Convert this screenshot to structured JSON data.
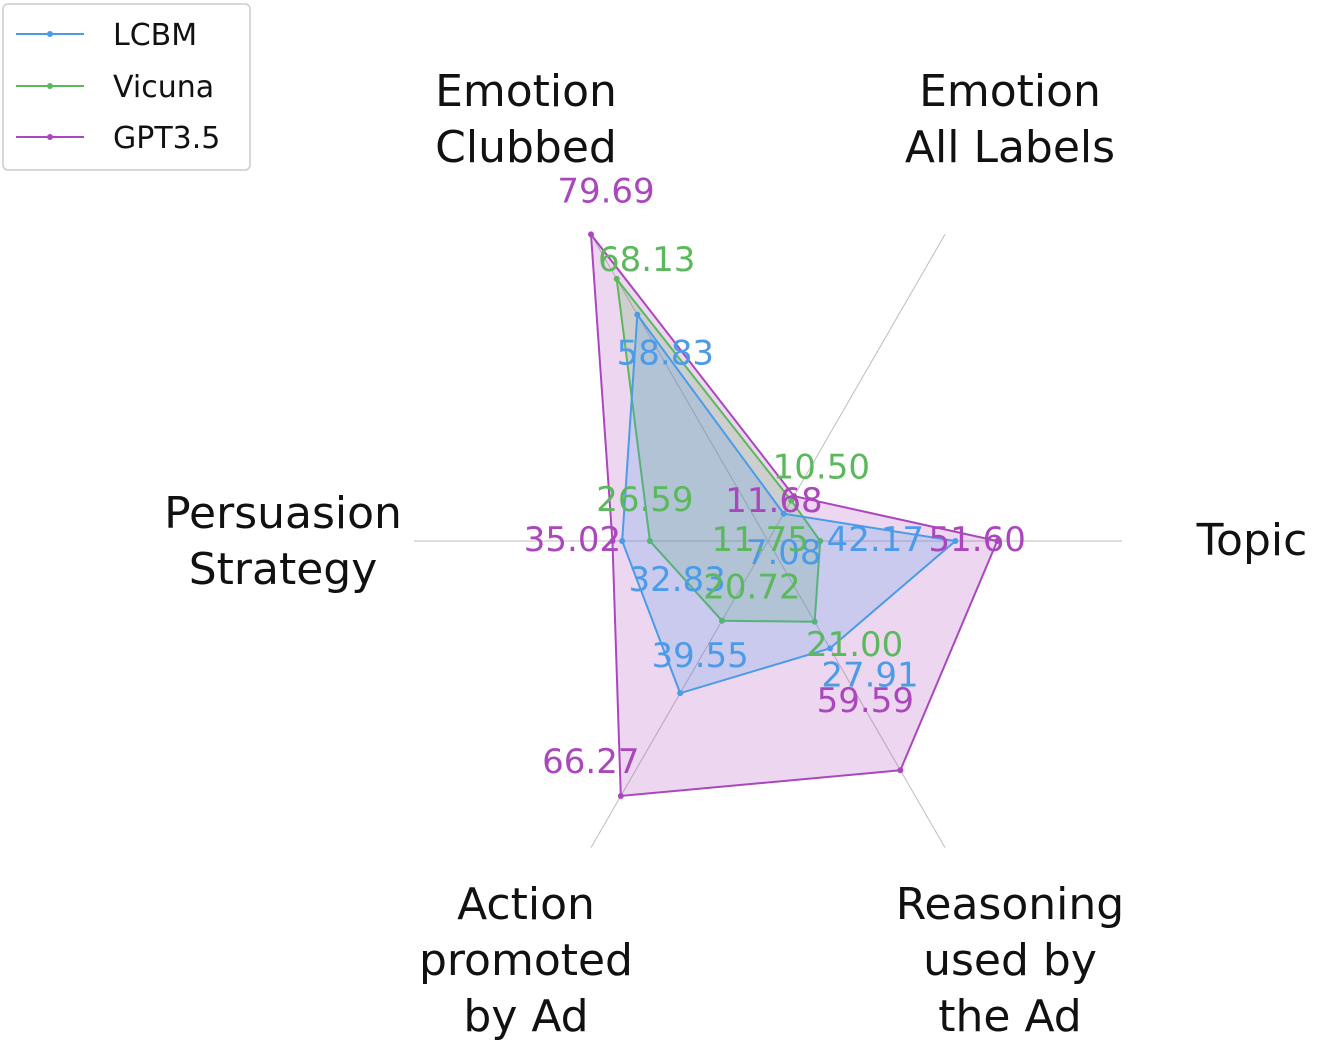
{
  "chart_data": {
    "type": "radar",
    "axes": [
      {
        "key": "topic",
        "label": [
          "Topic"
        ]
      },
      {
        "key": "emotion_all",
        "label": [
          "Emotion",
          "All Labels"
        ]
      },
      {
        "key": "emotion_clubbed",
        "label": [
          "Emotion",
          "Clubbed"
        ]
      },
      {
        "key": "persuasion",
        "label": [
          "Persuasion",
          "Strategy"
        ]
      },
      {
        "key": "action",
        "label": [
          "Action",
          "promoted",
          "by Ad"
        ]
      },
      {
        "key": "reasoning",
        "label": [
          "Reasoning",
          "used by",
          "the Ad"
        ]
      }
    ],
    "series": [
      {
        "name": "LCBM",
        "color": "#4c9be8",
        "values": [
          42.17,
          7.08,
          58.83,
          32.83,
          39.55,
          27.91
        ],
        "labels": [
          "42.17",
          "7.08",
          "58.83",
          "32.83",
          "39.55",
          "27.91"
        ]
      },
      {
        "name": "Vicuna",
        "color": "#5cb85c",
        "values": [
          11.75,
          10.5,
          68.13,
          26.59,
          20.72,
          21.0
        ],
        "labels": [
          "11.75",
          "10.50",
          "68.13",
          "26.59",
          "20.72",
          "21.00"
        ]
      },
      {
        "name": "GPT3.5",
        "color": "#ab47bc",
        "values": [
          51.6,
          11.68,
          79.69,
          35.02,
          66.27,
          59.59
        ],
        "labels": [
          "51.60",
          "11.68",
          "79.69",
          "35.02",
          "66.27",
          "59.59"
        ]
      }
    ],
    "grid": true,
    "legend_position": "top-left"
  }
}
